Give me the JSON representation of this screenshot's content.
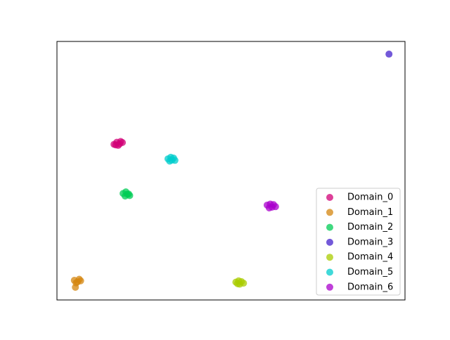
{
  "chart_data": {
    "type": "scatter",
    "xlim": [
      0,
      100
    ],
    "ylim": [
      0,
      100
    ],
    "legend": "lower right",
    "series": [
      {
        "name": "Domain_0",
        "color": "#d10077",
        "x": [
          16.4,
          17.2,
          18.0,
          18.8,
          17.6,
          16.9,
          18.3
        ],
        "y": [
          60.2,
          61.0,
          60.4,
          60.9,
          59.8,
          60.0,
          61.3
        ]
      },
      {
        "name": "Domain_1",
        "color": "#d4860f",
        "x": [
          5.0,
          5.9,
          6.8,
          5.5,
          6.4,
          5.3
        ],
        "y": [
          7.6,
          7.0,
          7.4,
          6.6,
          8.0,
          4.9
        ]
      },
      {
        "name": "Domain_2",
        "color": "#00cc55",
        "x": [
          19.0,
          19.8,
          20.6,
          20.9,
          19.6,
          20.2
        ],
        "y": [
          41.2,
          41.8,
          41.0,
          40.4,
          40.2,
          40.9
        ]
      },
      {
        "name": "Domain_3",
        "color": "#4422cc",
        "x": [
          95.4
        ],
        "y": [
          95.1
        ]
      },
      {
        "name": "Domain_4",
        "color": "#aacc00",
        "x": [
          51.4,
          52.2,
          53.0,
          53.6,
          52.5,
          51.9
        ],
        "y": [
          6.9,
          7.4,
          7.1,
          6.5,
          6.1,
          6.3
        ]
      },
      {
        "name": "Domain_5",
        "color": "#00cccc",
        "x": [
          31.9,
          32.7,
          33.5,
          33.9,
          32.4,
          33.0
        ],
        "y": [
          54.6,
          55.2,
          54.9,
          54.0,
          53.7,
          54.1
        ]
      },
      {
        "name": "Domain_6",
        "color": "#aa00cc",
        "x": [
          60.4,
          61.3,
          62.2,
          62.8,
          61.0,
          61.8
        ],
        "y": [
          36.7,
          37.1,
          36.9,
          36.1,
          35.6,
          35.9
        ]
      }
    ]
  }
}
